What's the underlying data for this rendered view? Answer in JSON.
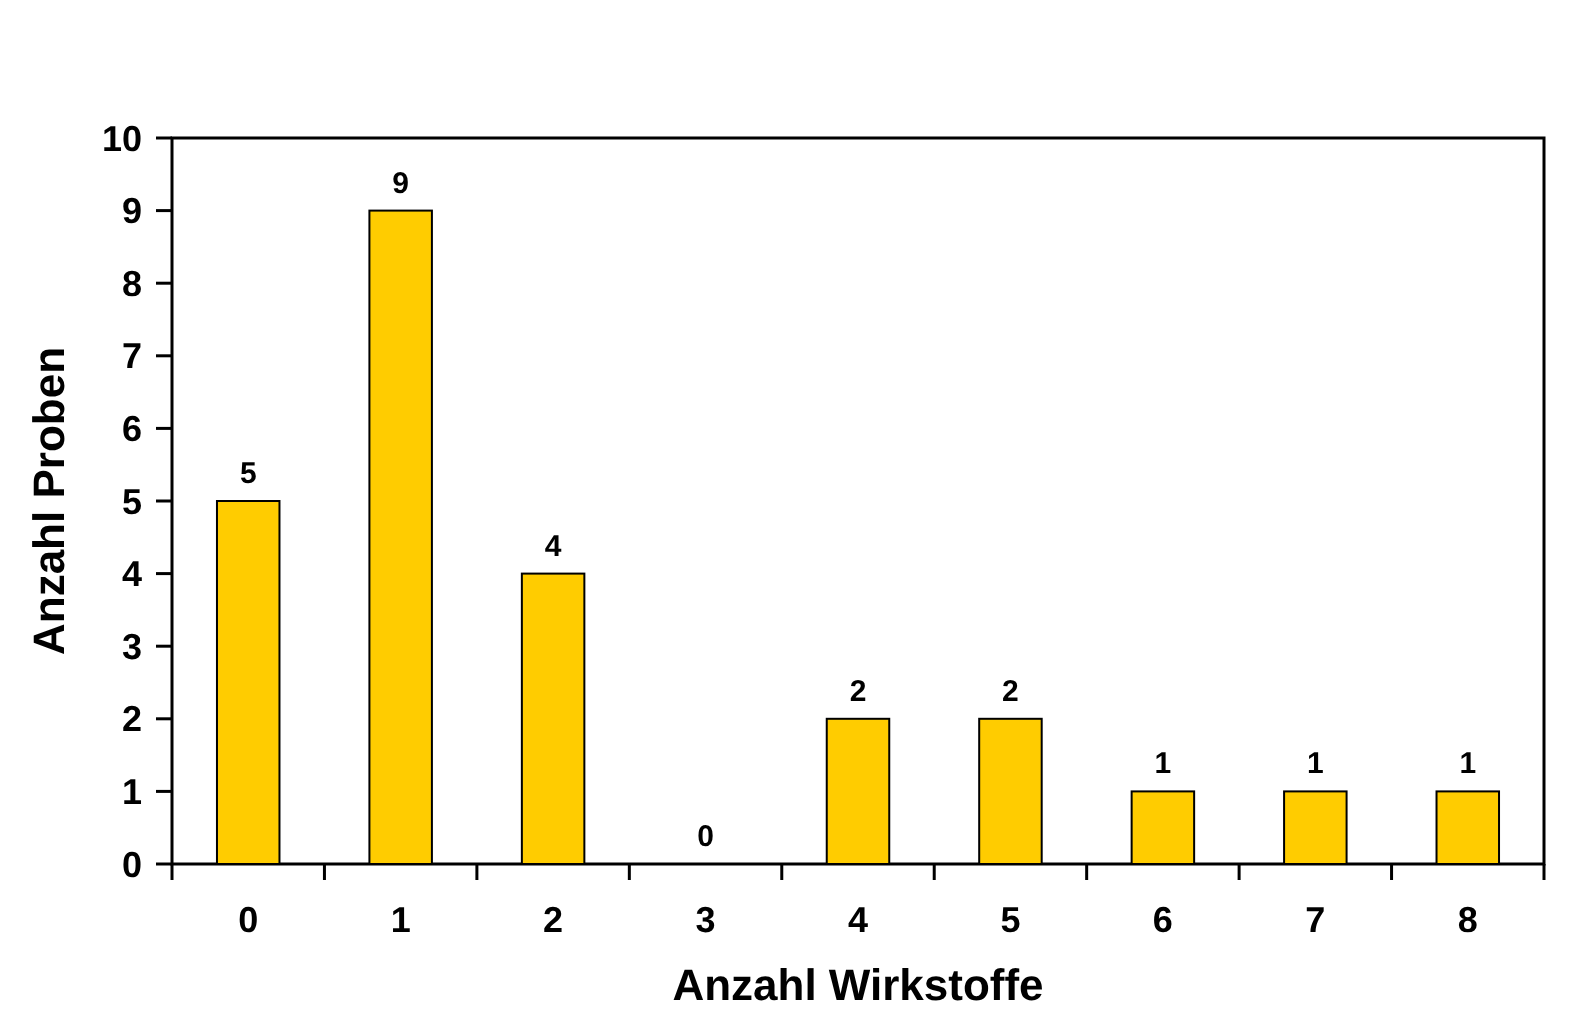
{
  "chart_data": {
    "type": "bar",
    "xlabel": "Anzahl Wirkstoffe",
    "ylabel": "Anzahl Proben",
    "categories": [
      "0",
      "1",
      "2",
      "3",
      "4",
      "5",
      "6",
      "7",
      "8"
    ],
    "values": [
      5,
      9,
      4,
      0,
      2,
      2,
      1,
      1,
      1
    ],
    "color": "#ffcc00",
    "ylim": [
      0,
      10
    ],
    "yticks": [
      0,
      1,
      2,
      3,
      4,
      5,
      6,
      7,
      8,
      9,
      10
    ],
    "grid": false,
    "data_labels": true
  }
}
